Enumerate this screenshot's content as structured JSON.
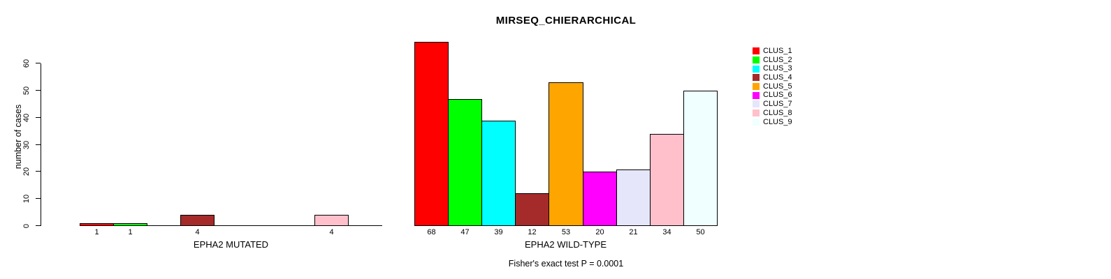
{
  "chart_data": {
    "type": "bar",
    "title": "MIRSEQ_CHIERARCHICAL",
    "ylabel": "number of cases",
    "annotation": "Fisher's exact test P = 0.0001",
    "ylim": [
      0,
      68
    ],
    "yticks": [
      0,
      10,
      20,
      30,
      40,
      50,
      60
    ],
    "grid": false,
    "bar_gap": 0,
    "clusters": [
      "CLUS_1",
      "CLUS_2",
      "CLUS_3",
      "CLUS_4",
      "CLUS_5",
      "CLUS_6",
      "CLUS_7",
      "CLUS_8",
      "CLUS_9"
    ],
    "colors": [
      "#FF0000",
      "#00FF00",
      "#00FFFF",
      "#A52A2A",
      "#FFA500",
      "#FF00FF",
      "#E6E6FA",
      "#FFC0CB",
      "#F0FFFF"
    ],
    "legend": {
      "position": "top-right",
      "items": [
        {
          "label": "CLUS_1",
          "color": "#FF0000"
        },
        {
          "label": "CLUS_2",
          "color": "#00FF00"
        },
        {
          "label": "CLUS_3",
          "color": "#00FFFF"
        },
        {
          "label": "CLUS_4",
          "color": "#A52A2A"
        },
        {
          "label": "CLUS_5",
          "color": "#FFA500"
        },
        {
          "label": "CLUS_6",
          "color": "#FF00FF"
        },
        {
          "label": "CLUS_7",
          "color": "#E6E6FA"
        },
        {
          "label": "CLUS_8",
          "color": "#FFC0CB"
        },
        {
          "label": "CLUS_9",
          "color": "#F0FFFF"
        }
      ]
    },
    "panels": [
      {
        "xlabel": "EPHA2 MUTATED",
        "values": [
          1,
          1,
          null,
          4,
          null,
          null,
          null,
          4,
          null
        ]
      },
      {
        "xlabel": "EPHA2 WILD-TYPE",
        "values": [
          68,
          47,
          39,
          12,
          53,
          20,
          21,
          34,
          50
        ]
      }
    ]
  }
}
